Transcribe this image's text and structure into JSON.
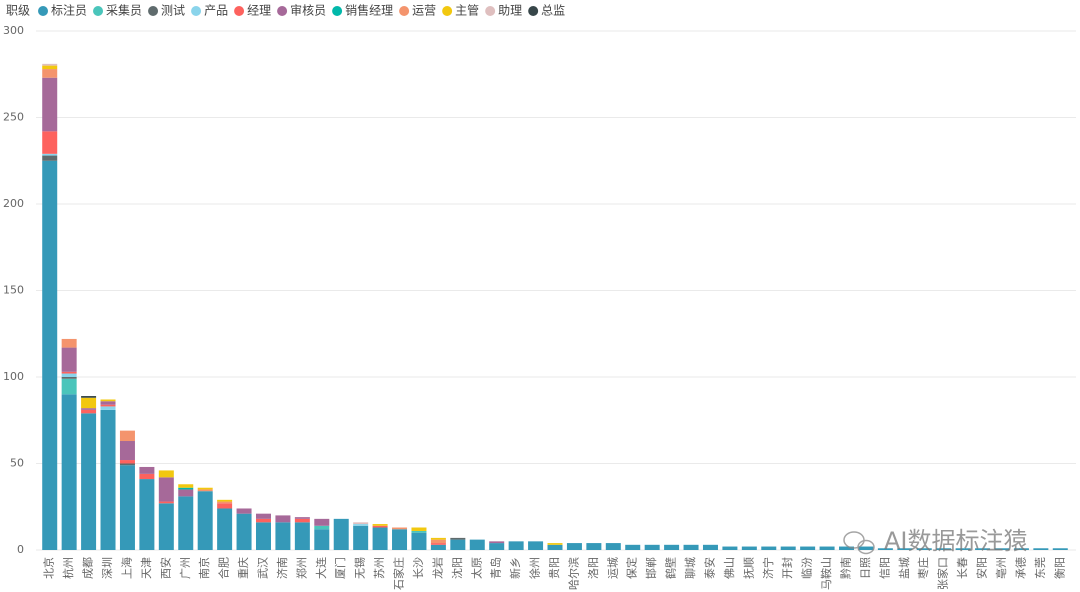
{
  "chart_data": {
    "type": "stacked-bar",
    "legend_title": "职级",
    "watermark": "AI数据标注猿",
    "categories": [
      "北京",
      "杭州",
      "成都",
      "深圳",
      "上海",
      "天津",
      "西安",
      "广州",
      "南京",
      "合肥",
      "重庆",
      "武汉",
      "济南",
      "郑州",
      "大连",
      "厦门",
      "无锡",
      "苏州",
      "石家庄",
      "长沙",
      "龙岩",
      "沈阳",
      "太原",
      "青岛",
      "新乡",
      "徐州",
      "贵阳",
      "哈尔滨",
      "洛阳",
      "运城",
      "保定",
      "邯郸",
      "鹤壁",
      "聊城",
      "泰安",
      "佛山",
      "抚顺",
      "济宁",
      "开封",
      "临汾",
      "马鞍山",
      "黔南",
      "日照",
      "信阳",
      "盐城",
      "枣庄",
      "张家口",
      "长春",
      "安阳",
      "亳州",
      "承德",
      "东莞",
      "衡阳"
    ],
    "series": [
      {
        "name": "标注员",
        "color": "#3599b8",
        "values": [
          225,
          90,
          79,
          81,
          49,
          41,
          27,
          31,
          34,
          24,
          21,
          16,
          16,
          16,
          12,
          18,
          14,
          13,
          12,
          10,
          3,
          6,
          6,
          4,
          5,
          5,
          3,
          4,
          4,
          4,
          3,
          3,
          3,
          3,
          3,
          2,
          2,
          2,
          2,
          2,
          2,
          2,
          2,
          1,
          1,
          1,
          1,
          1,
          1,
          1,
          1,
          1,
          1
        ]
      },
      {
        "name": "采集员",
        "color": "#4ac5bb",
        "values": [
          0,
          9,
          0,
          0,
          0,
          0,
          0,
          0,
          0,
          0,
          0,
          0,
          0,
          0,
          2,
          0,
          0,
          0,
          0,
          1,
          0,
          0,
          0,
          0,
          0,
          0,
          0,
          0,
          0,
          0,
          0,
          0,
          0,
          0,
          0,
          0,
          0,
          0,
          0,
          0,
          0,
          0,
          0,
          0,
          0,
          0,
          0,
          0,
          0,
          0,
          0,
          0,
          0
        ]
      },
      {
        "name": "测试",
        "color": "#5f6b6d",
        "values": [
          3,
          1,
          0,
          0,
          1,
          0,
          0,
          0,
          0,
          0,
          0,
          0,
          0,
          0,
          0,
          0,
          0,
          0,
          0,
          0,
          0,
          1,
          0,
          0,
          0,
          0,
          0,
          0,
          0,
          0,
          0,
          0,
          0,
          0,
          0,
          0,
          0,
          0,
          0,
          0,
          0,
          0,
          0,
          0,
          0,
          0,
          0,
          0,
          0,
          0,
          0,
          0,
          0
        ]
      },
      {
        "name": "产品",
        "color": "#8ad4eb",
        "values": [
          1,
          2,
          0,
          2,
          0,
          0,
          0,
          0,
          0,
          0,
          0,
          0,
          0,
          0,
          0,
          0,
          1,
          0,
          0,
          0,
          0,
          0,
          0,
          0,
          0,
          0,
          0,
          0,
          0,
          0,
          0,
          0,
          0,
          0,
          0,
          0,
          0,
          0,
          0,
          0,
          0,
          0,
          0,
          0,
          0,
          0,
          0,
          0,
          0,
          0,
          0,
          0,
          0
        ]
      },
      {
        "name": "经理",
        "color": "#fd625e",
        "values": [
          13,
          1,
          2,
          1,
          2,
          3,
          1,
          0,
          0,
          3,
          0,
          2,
          0,
          2,
          0,
          0,
          0,
          1,
          0,
          0,
          1,
          0,
          0,
          0,
          0,
          0,
          0,
          0,
          0,
          0,
          0,
          0,
          0,
          0,
          0,
          0,
          0,
          0,
          0,
          0,
          0,
          0,
          0,
          0,
          0,
          0,
          0,
          0,
          0,
          0,
          0,
          0,
          0
        ]
      },
      {
        "name": "审核员",
        "color": "#a66999",
        "values": [
          31,
          14,
          1,
          2,
          11,
          4,
          14,
          4,
          0,
          0,
          3,
          3,
          4,
          1,
          4,
          0,
          0,
          0,
          0,
          0,
          0,
          0,
          0,
          1,
          0,
          0,
          0,
          0,
          0,
          0,
          0,
          0,
          0,
          0,
          0,
          0,
          0,
          0,
          0,
          0,
          0,
          0,
          0,
          0,
          0,
          0,
          0,
          0,
          0,
          0,
          0,
          0,
          0
        ]
      },
      {
        "name": "销售经理",
        "color": "#01b8aa",
        "values": [
          0,
          0,
          0,
          0,
          0,
          0,
          0,
          1,
          0,
          0,
          0,
          0,
          0,
          0,
          0,
          0,
          0,
          0,
          0,
          0,
          0,
          0,
          0,
          0,
          0,
          0,
          0,
          0,
          0,
          0,
          0,
          0,
          0,
          0,
          0,
          0,
          0,
          0,
          0,
          0,
          0,
          0,
          0,
          0,
          0,
          0,
          0,
          0,
          0,
          0,
          0,
          0,
          0
        ]
      },
      {
        "name": "运营",
        "color": "#f4946d",
        "values": [
          5,
          5,
          0,
          0,
          6,
          0,
          0,
          0,
          1,
          1,
          0,
          0,
          0,
          0,
          0,
          0,
          0,
          0,
          1,
          0,
          2,
          0,
          0,
          0,
          0,
          0,
          0,
          0,
          0,
          0,
          0,
          0,
          0,
          0,
          0,
          0,
          0,
          0,
          0,
          0,
          0,
          0,
          0,
          0,
          0,
          0,
          0,
          0,
          0,
          0,
          0,
          0,
          0
        ]
      },
      {
        "name": "主管",
        "color": "#f2c80f",
        "values": [
          2,
          0,
          6,
          1,
          0,
          0,
          4,
          2,
          1,
          1,
          0,
          0,
          0,
          0,
          0,
          0,
          0,
          1,
          0,
          2,
          1,
          0,
          0,
          0,
          0,
          0,
          1,
          0,
          0,
          0,
          0,
          0,
          0,
          0,
          0,
          0,
          0,
          0,
          0,
          0,
          0,
          0,
          0,
          0,
          0,
          0,
          0,
          0,
          0,
          0,
          0,
          0,
          0
        ]
      },
      {
        "name": "助理",
        "color": "#dfbfbf",
        "values": [
          1,
          0,
          0,
          0,
          0,
          0,
          0,
          0,
          0,
          0,
          0,
          0,
          0,
          0,
          0,
          0,
          1,
          0,
          0,
          0,
          0,
          0,
          0,
          0,
          0,
          0,
          0,
          0,
          0,
          0,
          0,
          0,
          0,
          0,
          0,
          0,
          0,
          0,
          0,
          0,
          0,
          0,
          0,
          0,
          0,
          0,
          0,
          0,
          0,
          0,
          0,
          0,
          0
        ]
      },
      {
        "name": "总监",
        "color": "#374649",
        "values": [
          0,
          0,
          1,
          0,
          0,
          0,
          0,
          0,
          0,
          0,
          0,
          0,
          0,
          0,
          0,
          0,
          0,
          0,
          0,
          0,
          0,
          0,
          0,
          0,
          0,
          0,
          0,
          0,
          0,
          0,
          0,
          0,
          0,
          0,
          0,
          0,
          0,
          0,
          0,
          0,
          0,
          0,
          0,
          0,
          0,
          0,
          0,
          0,
          0,
          0,
          0,
          0,
          0
        ]
      }
    ],
    "ylim": [
      0,
      300
    ],
    "yticks": [
      0,
      50,
      100,
      150,
      200,
      250,
      300
    ],
    "grid": true
  }
}
